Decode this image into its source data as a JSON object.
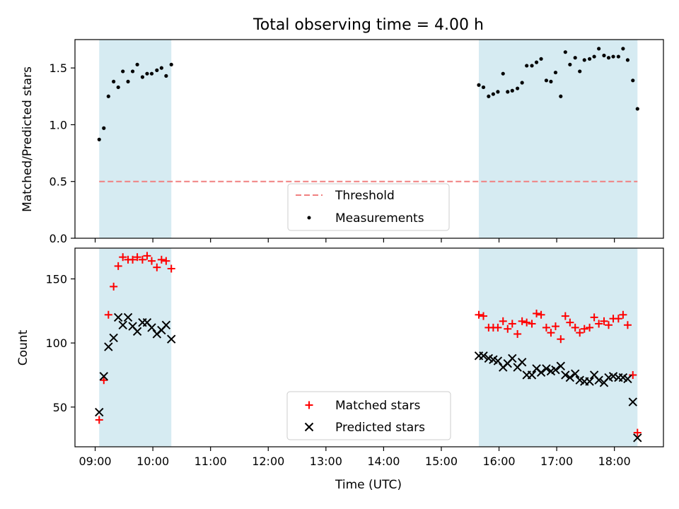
{
  "chart_data": {
    "type": "scatter",
    "title": "Total observing time = 4.00 h",
    "xlabel": "Time (UTC)",
    "xticks": [
      "09:00",
      "10:00",
      "11:00",
      "12:00",
      "13:00",
      "14:00",
      "15:00",
      "16:00",
      "17:00",
      "18:00"
    ],
    "xlim_hours": [
      8.65,
      18.85
    ],
    "observing_windows_hours": [
      [
        9.07,
        10.32
      ],
      [
        15.65,
        18.4
      ]
    ],
    "window_color": "#add8e6",
    "panels": [
      {
        "ylabel": "Matched/Predicted stars",
        "ylim": [
          0,
          1.75
        ],
        "yticks": [
          "0.0",
          "0.5",
          "1.0",
          "1.5"
        ],
        "threshold": {
          "name": "Threshold",
          "value": 0.5,
          "color": "#f08080"
        },
        "series": [
          {
            "name": "Measurements",
            "marker": "dot",
            "color": "#000000",
            "x": [
              9.07,
              9.15,
              9.23,
              9.32,
              9.4,
              9.48,
              9.57,
              9.65,
              9.73,
              9.82,
              9.9,
              9.98,
              10.07,
              10.15,
              10.23,
              10.32,
              15.65,
              15.73,
              15.82,
              15.9,
              15.98,
              16.07,
              16.15,
              16.23,
              16.32,
              16.4,
              16.48,
              16.57,
              16.65,
              16.73,
              16.82,
              16.9,
              16.98,
              17.07,
              17.15,
              17.23,
              17.32,
              17.4,
              17.48,
              17.57,
              17.65,
              17.73,
              17.82,
              17.9,
              17.98,
              18.07,
              18.15,
              18.23,
              18.32,
              18.4
            ],
            "y": [
              0.87,
              0.97,
              1.25,
              1.38,
              1.33,
              1.47,
              1.38,
              1.47,
              1.53,
              1.42,
              1.45,
              1.45,
              1.48,
              1.5,
              1.43,
              1.53,
              1.35,
              1.33,
              1.25,
              1.27,
              1.29,
              1.45,
              1.29,
              1.3,
              1.32,
              1.37,
              1.52,
              1.52,
              1.55,
              1.58,
              1.39,
              1.38,
              1.46,
              1.25,
              1.64,
              1.53,
              1.59,
              1.47,
              1.57,
              1.58,
              1.6,
              1.67,
              1.61,
              1.59,
              1.6,
              1.6,
              1.67,
              1.57,
              1.39,
              1.14
            ]
          }
        ]
      },
      {
        "ylabel": "Count",
        "ylim": [
          19,
          174
        ],
        "yticks": [
          "50",
          "100",
          "150"
        ],
        "series": [
          {
            "name": "Matched stars",
            "marker": "plus",
            "color": "#ff0000",
            "x": [
              9.07,
              9.15,
              9.23,
              9.32,
              9.4,
              9.48,
              9.57,
              9.65,
              9.73,
              9.82,
              9.9,
              9.98,
              10.07,
              10.15,
              10.23,
              10.32,
              15.65,
              15.73,
              15.82,
              15.9,
              15.98,
              16.07,
              16.15,
              16.23,
              16.32,
              16.4,
              16.48,
              16.57,
              16.65,
              16.73,
              16.82,
              16.9,
              16.98,
              17.07,
              17.15,
              17.23,
              17.32,
              17.4,
              17.48,
              17.57,
              17.65,
              17.73,
              17.82,
              17.9,
              17.98,
              18.07,
              18.15,
              18.23,
              18.32,
              18.4
            ],
            "y": [
              40,
              71,
              122,
              144,
              160,
              167,
              165,
              165,
              167,
              165,
              168,
              164,
              159,
              165,
              164,
              158,
              122,
              121,
              112,
              112,
              112,
              117,
              111,
              115,
              107,
              117,
              116,
              115,
              123,
              122,
              112,
              108,
              113,
              103,
              121,
              116,
              112,
              108,
              111,
              112,
              120,
              115,
              117,
              114,
              119,
              119,
              122,
              114,
              75,
              30
            ]
          },
          {
            "name": "Predicted stars",
            "marker": "cross",
            "color": "#000000",
            "x": [
              9.07,
              9.15,
              9.23,
              9.32,
              9.4,
              9.48,
              9.57,
              9.65,
              9.73,
              9.82,
              9.9,
              9.98,
              10.07,
              10.15,
              10.23,
              10.32,
              15.65,
              15.73,
              15.82,
              15.9,
              15.98,
              16.07,
              16.15,
              16.23,
              16.32,
              16.4,
              16.48,
              16.57,
              16.65,
              16.73,
              16.82,
              16.9,
              16.98,
              17.07,
              17.15,
              17.23,
              17.32,
              17.4,
              17.48,
              17.57,
              17.65,
              17.73,
              17.82,
              17.9,
              17.98,
              18.07,
              18.15,
              18.23,
              18.32,
              18.4
            ],
            "y": [
              46,
              74,
              97,
              104,
              120,
              114,
              120,
              113,
              109,
              116,
              116,
              112,
              107,
              110,
              114,
              103,
              90,
              90,
              88,
              87,
              86,
              81,
              84,
              88,
              81,
              85,
              75,
              75,
              80,
              77,
              80,
              78,
              79,
              82,
              75,
              73,
              76,
              71,
              70,
              70,
              75,
              71,
              69,
              73,
              74,
              73,
              73,
              72,
              54,
              26
            ]
          }
        ]
      }
    ],
    "legends": [
      {
        "panel": 0,
        "placement": "lower-center"
      },
      {
        "panel": 1,
        "placement": "lower-center"
      }
    ]
  }
}
